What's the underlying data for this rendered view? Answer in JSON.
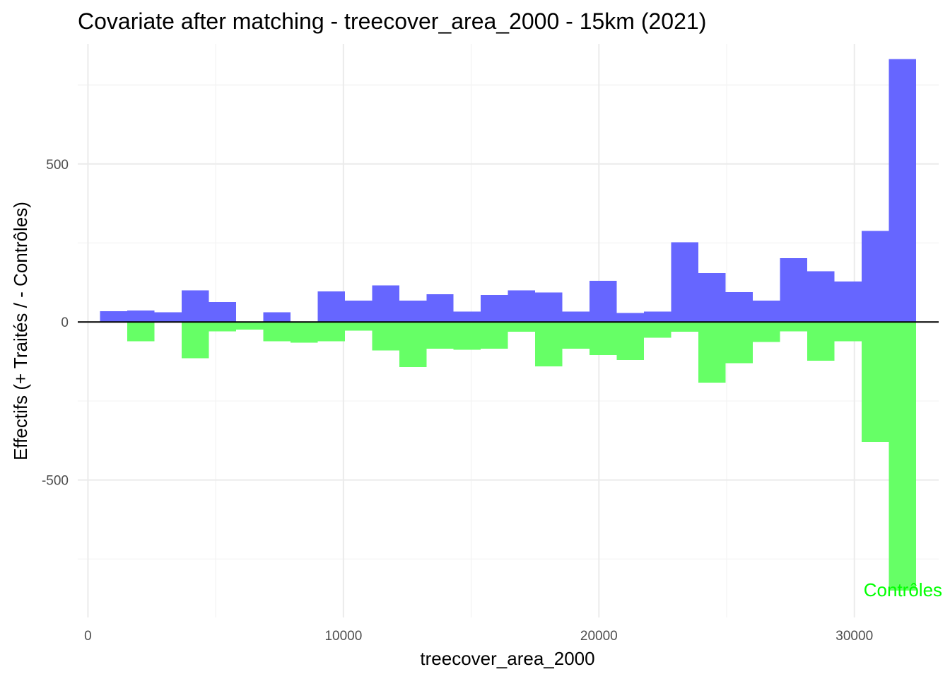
{
  "chart_data": {
    "type": "bar",
    "title": "Covariate after matching - treecover_area_2000 - 15km (2021)",
    "xlabel": "treecover_area_2000",
    "ylabel": "Effectifs (+ Traités / - Contrôles)",
    "xlim": [
      -400,
      33300
    ],
    "ylim": [
      -935,
      880
    ],
    "x_ticks": [
      0,
      10000,
      20000,
      30000
    ],
    "x_tick_labels": [
      "0",
      "10000",
      "20000",
      "30000"
    ],
    "y_ticks": [
      500,
      0,
      -500
    ],
    "y_tick_labels": [
      "500",
      "0",
      "-500"
    ],
    "grid": true,
    "bin_width": 1065,
    "bin_centers": [
      1000,
      2065,
      3130,
      4195,
      5260,
      6325,
      7390,
      8455,
      9520,
      10585,
      11650,
      12715,
      13780,
      14845,
      15910,
      16975,
      18040,
      19105,
      20170,
      21235,
      22300,
      23365,
      24430,
      25495,
      26560,
      27625,
      28690,
      29755,
      30820,
      31885
    ],
    "series": [
      {
        "name": "Traités",
        "color": "#6666ff",
        "values": [
          34,
          36,
          31,
          100,
          63,
          0,
          31,
          0,
          97,
          68,
          116,
          68,
          88,
          33,
          85,
          100,
          93,
          33,
          130,
          29,
          33,
          252,
          155,
          95,
          68,
          202,
          160,
          128,
          288,
          832
        ]
      },
      {
        "name": "Contrôles",
        "color": "#66ff66",
        "values": [
          0,
          -61,
          0,
          -115,
          -30,
          -24,
          -61,
          -66,
          -61,
          -27,
          -90,
          -143,
          -85,
          -88,
          -85,
          -31,
          -140,
          -85,
          -105,
          -120,
          -50,
          -31,
          -192,
          -130,
          -63,
          -30,
          -123,
          -61,
          -380,
          -850
        ]
      }
    ],
    "annotations": [
      {
        "text": "Contrôles",
        "x": 31900,
        "y": -845,
        "color": "#00ff00"
      }
    ]
  }
}
